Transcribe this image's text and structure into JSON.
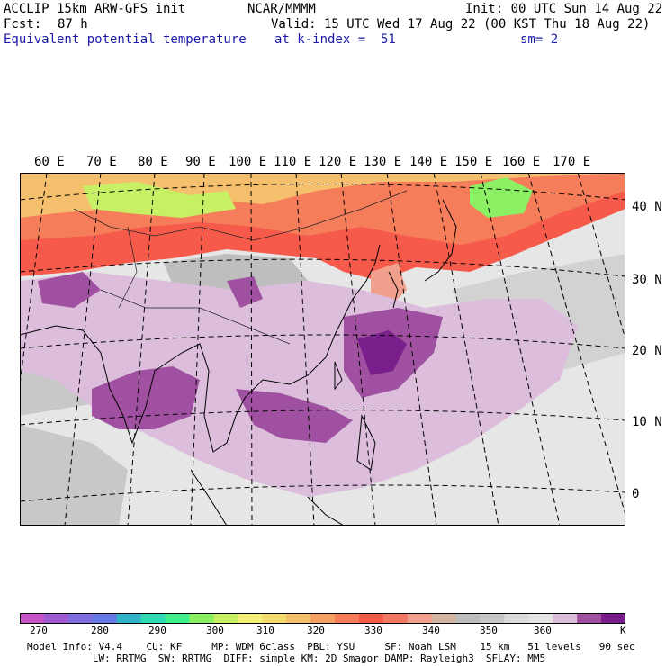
{
  "header": {
    "model": "ACCLIP 15km ARW-GFS init",
    "org": "NCAR/MMMM",
    "init": "Init: 00 UTC Sun 14 Aug 22",
    "fcst_label": "Fcst:",
    "fcst_value": "87 h",
    "valid": "Valid: 15 UTC Wed 17 Aug 22 (00 KST Thu 18 Aug 22)",
    "field": "Equivalent potential temperature",
    "level": "at k-index =  51",
    "smoothing": "sm= 2"
  },
  "map": {
    "lon_labels": [
      "60 E",
      "70 E",
      "80 E",
      "90 E",
      "100 E",
      "110 E",
      "120 E",
      "130 E",
      "140 E",
      "150 E",
      "160 E",
      "170 E"
    ],
    "lat_labels": [
      "40 N",
      "30 N",
      "20 N",
      "10 N",
      "0"
    ]
  },
  "colorbar": {
    "ticks": [
      "270",
      "280",
      "290",
      "300",
      "310",
      "320",
      "330",
      "340",
      "350",
      "360"
    ],
    "unit": "K",
    "colors": [
      "#c855c8",
      "#a05ad2",
      "#7f6ee0",
      "#6478e6",
      "#32b4c8",
      "#2ddcb4",
      "#3cf08c",
      "#8cf064",
      "#c8f064",
      "#f5f078",
      "#f5dc6e",
      "#f5c06e",
      "#f5a064",
      "#f57d5a",
      "#f55a4b",
      "#f07864",
      "#f0a08c",
      "#d2b4a0",
      "#bebebe",
      "#c8c8c8",
      "#dcdcdc",
      "#e6e6e6",
      "#dcbedc",
      "#a050a0",
      "#7a1e8c"
    ]
  },
  "footer": {
    "line1": "Model Info: V4.4    CU: KF     MP: WDM 6class  PBL: YSU     SF: Noah LSM    15 km   51 levels   90 sec",
    "line2": "           LW: RRTMG  SW: RRTMG  DIFF: simple KM: 2D Smagor DAMP: Rayleigh3  SFLAY: MM5"
  }
}
